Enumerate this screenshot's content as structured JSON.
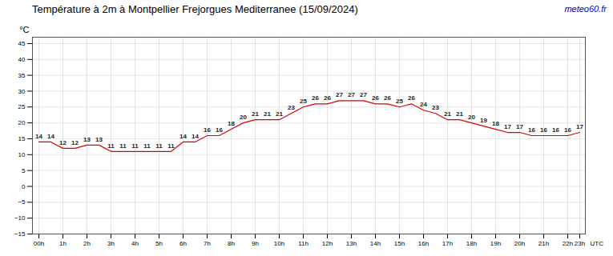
{
  "chart_data": {
    "type": "line",
    "title": "Température à 2m à Montpellier Frejorgues Mediterranee (15/09/2024)",
    "xlabel": "UTC",
    "ylabel": "°C",
    "annotations": [
      {
        "text": "meteo60.fr",
        "color": "#0000cc"
      }
    ],
    "categories": [
      "00h",
      null,
      "1h",
      null,
      "2h",
      null,
      "3h",
      null,
      "4h",
      null,
      "5h",
      null,
      "6h",
      null,
      "7h",
      null,
      "8h",
      null,
      "9h",
      null,
      "10h",
      null,
      "11h",
      null,
      "12h",
      null,
      "13h",
      null,
      "14h",
      null,
      "15h",
      null,
      "16h",
      null,
      "17h",
      null,
      "18h",
      null,
      "19h",
      null,
      "20h",
      null,
      "21h",
      null,
      "22h",
      "23h"
    ],
    "values": [
      14,
      14,
      12,
      12,
      13,
      13,
      11,
      11,
      11,
      11,
      11,
      11,
      14,
      14,
      16,
      16,
      18,
      20,
      21,
      21,
      21,
      23,
      25,
      26,
      26,
      27,
      27,
      27,
      26,
      26,
      25,
      26,
      24,
      23,
      21,
      21,
      20,
      19,
      18,
      17,
      17,
      16,
      16,
      16,
      16,
      17
    ],
    "color": "#dd0000",
    "ylim": [
      -15,
      47
    ],
    "yticks": [
      -15,
      -10,
      -5,
      0,
      5,
      10,
      15,
      20,
      25,
      30,
      35,
      40,
      45
    ],
    "grid": true,
    "data_labels": true
  }
}
